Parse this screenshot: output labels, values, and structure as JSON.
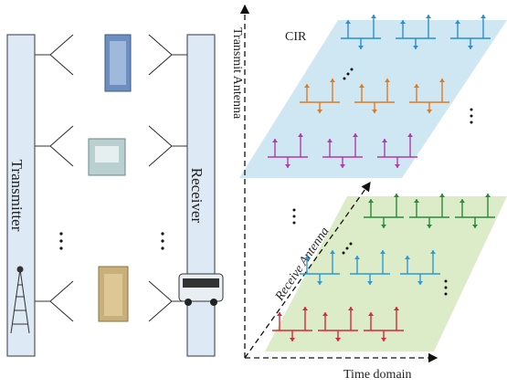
{
  "labels": {
    "transmitter": "Transmitter",
    "receiver": "Receiver",
    "transmit_axis": "Transmit Antenna",
    "cir": "CIR",
    "receive_axis": "Receive Antenna",
    "time_axis": "Time domain"
  }
}
